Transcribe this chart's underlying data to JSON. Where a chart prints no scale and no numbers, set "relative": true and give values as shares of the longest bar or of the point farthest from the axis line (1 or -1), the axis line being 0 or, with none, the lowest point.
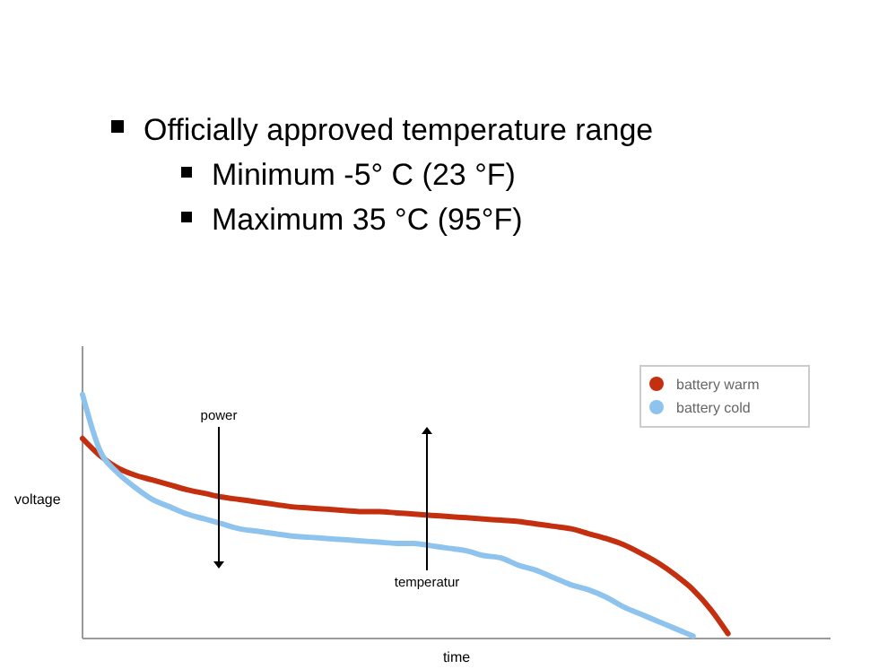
{
  "chart_data": {
    "type": "line",
    "relative": true,
    "xlabel": "time",
    "ylabel": "voltage",
    "legend": "top right",
    "marker": "none",
    "annotations": [
      "Officially approved temperature range",
      "Minimum -5° C (23 °F)",
      "Maximum 35 °C (95°F)",
      "power",
      "temperatur"
    ],
    "categories": [
      null,
      null,
      null,
      null,
      null,
      null,
      null,
      null,
      null,
      null,
      null,
      null,
      null,
      null,
      null,
      null,
      null,
      null,
      null,
      null,
      null,
      null,
      null,
      null,
      null,
      null,
      null,
      null,
      null,
      null,
      null,
      null,
      null,
      null,
      null,
      null,
      null,
      null,
      null,
      null,
      null
    ],
    "series": [
      {
        "name": "battery warm",
        "color": "#c4300f",
        "values": [
          0.82,
          0.75,
          0.7,
          0.67,
          0.65,
          0.63,
          0.61,
          0.595,
          0.58,
          0.57,
          0.56,
          0.55,
          0.54,
          0.535,
          0.53,
          0.525,
          0.52,
          0.52,
          0.515,
          0.51,
          0.505,
          0.5,
          0.495,
          0.49,
          0.485,
          0.48,
          0.47,
          0.46,
          0.45,
          0.43,
          0.41,
          0.385,
          0.35,
          0.31,
          0.26,
          0.2,
          0.12,
          0.02,
          null,
          null,
          null
        ]
      },
      {
        "name": "battery cold",
        "color": "#8ec3ee",
        "values": [
          1.0,
          0.77,
          0.68,
          0.62,
          0.57,
          0.54,
          0.51,
          0.49,
          0.47,
          0.45,
          0.44,
          0.43,
          0.42,
          0.415,
          0.41,
          0.405,
          0.4,
          0.395,
          0.39,
          0.39,
          0.38,
          0.37,
          0.36,
          0.34,
          0.33,
          0.3,
          0.28,
          0.25,
          0.22,
          0.2,
          0.17,
          0.13,
          0.1,
          0.07,
          0.04,
          0.01,
          null,
          null,
          null,
          null,
          null
        ]
      }
    ]
  }
}
